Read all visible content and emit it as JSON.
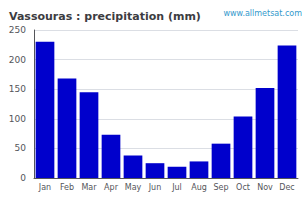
{
  "chart_data": {
    "type": "bar",
    "title": "Vassouras : precipitation (mm)",
    "categories": [
      "Jan",
      "Feb",
      "Mar",
      "Apr",
      "May",
      "Jun",
      "Jul",
      "Aug",
      "Sep",
      "Oct",
      "Nov",
      "Dec"
    ],
    "values": [
      230,
      168,
      145,
      73,
      38,
      25,
      19,
      28,
      58,
      104,
      152,
      224
    ],
    "color": "#0000cc",
    "ylim": [
      0,
      250
    ],
    "yticks": [
      0,
      50,
      100,
      150,
      200,
      250
    ],
    "grid": true,
    "annotations": [
      "www.allmetsat.com"
    ]
  }
}
